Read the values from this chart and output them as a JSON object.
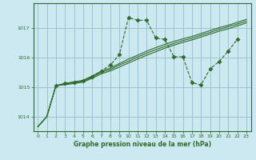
{
  "title": "Graphe pression niveau de la mer (hPa)",
  "bg_color": "#cce8f0",
  "grid_color": "#99bbcc",
  "line_color": "#2d6a2d",
  "xlim": [
    -0.5,
    23.5
  ],
  "ylim": [
    1013.5,
    1017.85
  ],
  "yticks": [
    1014,
    1015,
    1016,
    1017
  ],
  "xticks": [
    0,
    1,
    2,
    3,
    4,
    5,
    6,
    7,
    8,
    9,
    10,
    11,
    12,
    13,
    14,
    15,
    16,
    17,
    18,
    19,
    20,
    21,
    22,
    23
  ],
  "trend1_x": [
    0,
    1,
    2,
    3,
    4,
    5,
    6,
    7,
    8,
    9,
    10,
    11,
    12,
    13,
    14,
    15,
    16,
    17,
    18,
    19,
    20,
    21,
    22,
    23
  ],
  "trend1_y": [
    1013.65,
    1014.0,
    1015.05,
    1015.08,
    1015.12,
    1015.17,
    1015.3,
    1015.45,
    1015.55,
    1015.68,
    1015.82,
    1015.95,
    1016.08,
    1016.2,
    1016.32,
    1016.42,
    1016.52,
    1016.6,
    1016.7,
    1016.8,
    1016.9,
    1016.98,
    1017.08,
    1017.18
  ],
  "trend2_x": [
    0,
    1,
    2,
    3,
    4,
    5,
    6,
    7,
    8,
    9,
    10,
    11,
    12,
    13,
    14,
    15,
    16,
    17,
    18,
    19,
    20,
    21,
    22,
    23
  ],
  "trend2_y": [
    1013.65,
    1014.0,
    1015.05,
    1015.1,
    1015.16,
    1015.2,
    1015.34,
    1015.5,
    1015.6,
    1015.75,
    1015.88,
    1016.02,
    1016.15,
    1016.27,
    1016.38,
    1016.48,
    1016.58,
    1016.66,
    1016.76,
    1016.86,
    1016.96,
    1017.05,
    1017.14,
    1017.24
  ],
  "trend3_x": [
    0,
    1,
    2,
    3,
    4,
    5,
    6,
    7,
    8,
    9,
    10,
    11,
    12,
    13,
    14,
    15,
    16,
    17,
    18,
    19,
    20,
    21,
    22,
    23
  ],
  "trend3_y": [
    1013.65,
    1014.0,
    1015.05,
    1015.12,
    1015.18,
    1015.23,
    1015.38,
    1015.54,
    1015.65,
    1015.8,
    1015.95,
    1016.08,
    1016.22,
    1016.34,
    1016.45,
    1016.55,
    1016.64,
    1016.72,
    1016.82,
    1016.92,
    1017.02,
    1017.1,
    1017.2,
    1017.3
  ],
  "meas_x": [
    2,
    3,
    4,
    5,
    6,
    7,
    8,
    9,
    10,
    11,
    12,
    13,
    14,
    15,
    16,
    17,
    18,
    19,
    20,
    21,
    22
  ],
  "meas_y": [
    1015.05,
    1015.12,
    1015.15,
    1015.2,
    1015.35,
    1015.55,
    1015.75,
    1016.1,
    1017.36,
    1017.27,
    1017.27,
    1016.67,
    1016.62,
    1016.03,
    1016.03,
    1015.15,
    1015.07,
    1015.62,
    1015.87,
    1016.22,
    1016.62
  ]
}
